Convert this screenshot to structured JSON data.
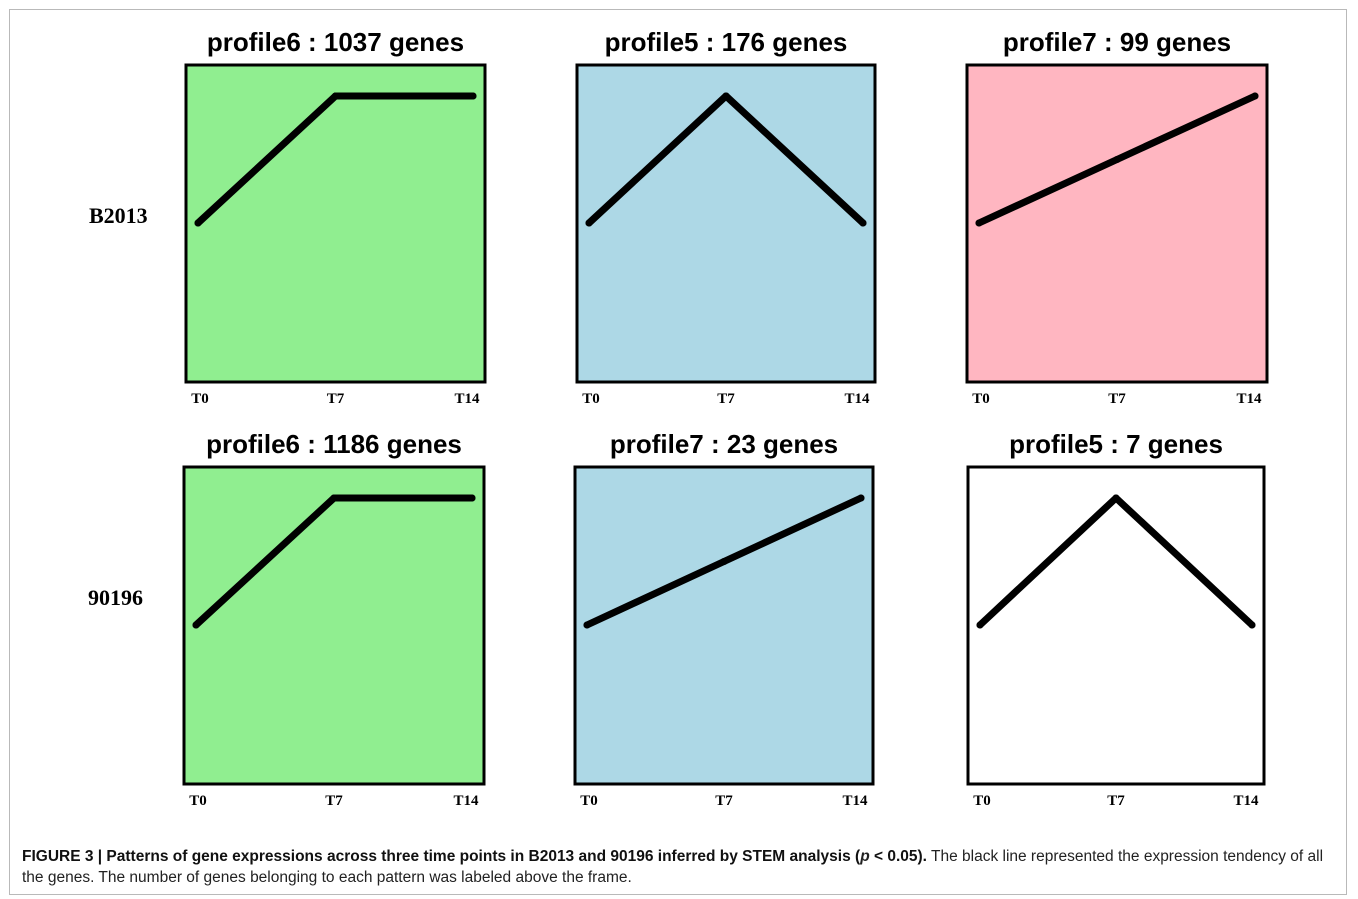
{
  "rows": [
    {
      "label": "B2013"
    },
    {
      "label": "90196"
    }
  ],
  "colors": {
    "green": "#90ee90",
    "blue": "#add8e6",
    "pink": "#ffb6c1",
    "white": "#ffffff",
    "line": "#000000",
    "border": "#000000"
  },
  "chart_data": [
    {
      "type": "line",
      "row": "B2013",
      "title": "profile6 : 1037 genes",
      "categories": [
        "T0",
        "T7",
        "T14"
      ],
      "values": [
        0,
        1,
        1
      ],
      "background": "green"
    },
    {
      "type": "line",
      "row": "B2013",
      "title": "profile5 : 176 genes",
      "categories": [
        "T0",
        "T7",
        "T14"
      ],
      "values": [
        0,
        1,
        0
      ],
      "background": "blue"
    },
    {
      "type": "line",
      "row": "B2013",
      "title": "profile7 : 99 genes",
      "categories": [
        "T0",
        "T7",
        "T14"
      ],
      "values": [
        0,
        0.5,
        1
      ],
      "background": "pink"
    },
    {
      "type": "line",
      "row": "90196",
      "title": "profile6 : 1186 genes",
      "categories": [
        "T0",
        "T7",
        "T14"
      ],
      "values": [
        0,
        1,
        1
      ],
      "background": "green"
    },
    {
      "type": "line",
      "row": "90196",
      "title": "profile7 : 23 genes",
      "categories": [
        "T0",
        "T7",
        "T14"
      ],
      "values": [
        0,
        0.5,
        1
      ],
      "background": "blue"
    },
    {
      "type": "line",
      "row": "90196",
      "title": "profile5 : 7 genes",
      "categories": [
        "T0",
        "T7",
        "T14"
      ],
      "values": [
        0,
        1,
        0
      ],
      "background": "white"
    }
  ],
  "caption": {
    "lead": "FIGURE 3 | Patterns of gene expressions across three time points in B2013 and 90196 inferred by STEM analysis (",
    "p_symbol": "p",
    "p_rest": " < 0.05).",
    "body": " The black line represented the expression tendency of all the genes. The number of genes belonging to each pattern was labeled above the frame."
  }
}
